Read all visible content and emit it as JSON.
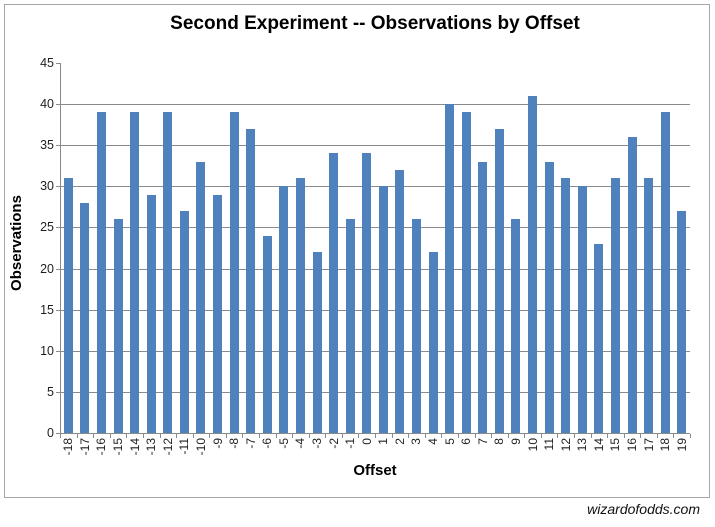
{
  "attribution": "wizardofodds.com",
  "chart_data": {
    "type": "bar",
    "title": "Second Experiment -- Observations by Offset",
    "xlabel": "Offset",
    "ylabel": "Observations",
    "categories": [
      "-18",
      "-17",
      "-16",
      "-15",
      "-14",
      "-13",
      "-12",
      "-11",
      "-10",
      "-9",
      "-8",
      "-7",
      "-6",
      "-5",
      "-4",
      "-3",
      "-2",
      "-1",
      "0",
      "1",
      "2",
      "3",
      "4",
      "5",
      "6",
      "7",
      "8",
      "9",
      "10",
      "11",
      "12",
      "13",
      "14",
      "15",
      "16",
      "17",
      "18",
      "19"
    ],
    "values": [
      31,
      28,
      39,
      26,
      39,
      29,
      39,
      27,
      33,
      29,
      39,
      37,
      24,
      30,
      31,
      22,
      34,
      26,
      34,
      30,
      32,
      26,
      22,
      40,
      39,
      33,
      37,
      26,
      41,
      33,
      31,
      30,
      23,
      31,
      36,
      31,
      39,
      27
    ],
    "ylim": [
      0,
      45
    ],
    "ytick_step": 5,
    "yticks": [
      0,
      5,
      10,
      15,
      20,
      25,
      30,
      35,
      40,
      45
    ],
    "grid": true,
    "legend": "none",
    "colors": {
      "bar": "#4f81bd",
      "gridline": "#8a8a8a",
      "axis": "#8a8a8a",
      "frame_border": "#a6a6a6",
      "text": "#1f1f1f"
    }
  }
}
